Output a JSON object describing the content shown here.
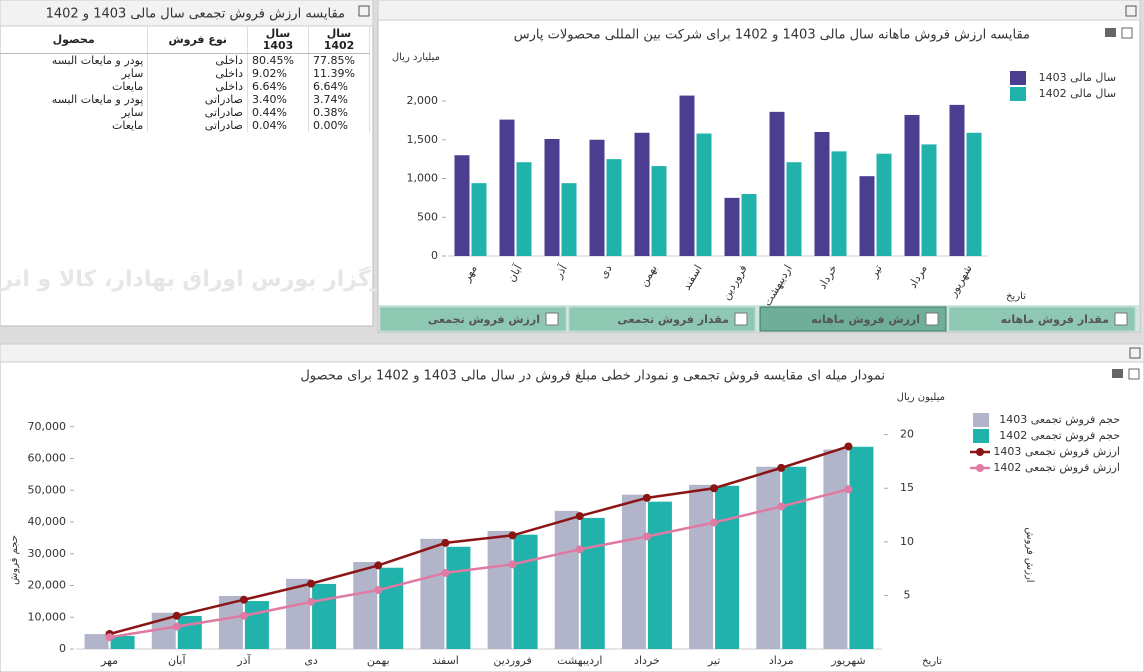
{
  "table": {
    "title": "مقایسه ارزش فروش تجمعی سال مالی 1403 و 1402",
    "columns": [
      "محصول",
      "نوع فروش",
      "سال 1403",
      "سال 1402"
    ],
    "rows": [
      [
        "پودر و مایعات البسه",
        "داخلی",
        "80.45%",
        "77.85%"
      ],
      [
        "سایر",
        "داخلی",
        "9.02%",
        "11.39%"
      ],
      [
        "مایعات",
        "داخلی",
        "6.64%",
        "6.64%"
      ],
      [
        "پودر و مایعات البسه",
        "صادراتی",
        "3.40%",
        "3.74%"
      ],
      [
        "سایر",
        "صادراتی",
        "0.44%",
        "0.38%"
      ],
      [
        "مایعات",
        "صادراتی",
        "0.04%",
        "0.00%"
      ]
    ]
  },
  "watermark": "کارگزار بورس اوراق بهادار، کالا و انرژی",
  "tabs": [
    "ارزش فروش تجمعی",
    "مقدار فروش تجمعی",
    "ارزش فروش ماهانه",
    "مقدار فروش ماهانه"
  ],
  "chart_data": [
    {
      "type": "bar",
      "title": "مقایسه ارزش فروش ماهانه سال مالی 1403 و 1402 برای شرکت بین المللی محصولات پارس",
      "y_label": "میلیارد ریال",
      "x_label": "تاریخ",
      "categories": [
        "مهر",
        "آبان",
        "آذر",
        "دی",
        "بهمن",
        "اسفند",
        "فروردین",
        "اردیبهشت",
        "خرداد",
        "تیر",
        "مرداد",
        "شهریور"
      ],
      "series": [
        {
          "name": "سال مالی 1403",
          "color": "#4b3d8f",
          "values": [
            1300,
            1760,
            1510,
            1500,
            1590,
            2070,
            750,
            1860,
            1600,
            1030,
            1820,
            1950
          ]
        },
        {
          "name": "سال مالی 1402",
          "color": "#21b3ab",
          "values": [
            940,
            1210,
            940,
            1250,
            1160,
            1580,
            800,
            1210,
            1350,
            1320,
            1440,
            1590
          ]
        }
      ],
      "ylim": [
        0,
        2400
      ],
      "yticks": [
        0,
        500,
        {
          "value": 1000,
          "label": "1,000"
        },
        {
          "value": 1500,
          "label": "1,500"
        },
        {
          "value": 2000,
          "label": "2,000"
        }
      ],
      "legend": "top-right"
    },
    {
      "type": "combo",
      "title": "نمودار میله ای مقایسه فروش تجمعی و نمودار خطی مبلغ فروش در سال مالی 1403 و 1402 برای محصول",
      "y_label": "حجم فروش",
      "y2_unit": "میلیون ریال",
      "y2_label": "ارزش فروش",
      "x_label": "تاریخ",
      "categories": [
        "مهر",
        "آبان",
        "آذر",
        "دی",
        "بهمن",
        "اسفند",
        "فروردین",
        "اردیبهشت",
        "خرداد",
        "تیر",
        "مرداد",
        "شهریور"
      ],
      "series": [
        {
          "name": "حجم فروش تجمعی 1403",
          "type": "bar",
          "color": "#b2b5c9",
          "values": [
            4700,
            11400,
            16700,
            22100,
            27400,
            34700,
            37200,
            43500,
            48600,
            51700,
            57400,
            62800
          ]
        },
        {
          "name": "حجم فروش تجمعی 1402",
          "type": "bar",
          "color": "#21b3ab",
          "values": [
            4100,
            10400,
            15100,
            20500,
            25600,
            32200,
            36000,
            41300,
            46400,
            51400,
            57400,
            63700
          ]
        },
        {
          "name": "ارزش فروش تجمعی 1403",
          "type": "line",
          "axis": "y2",
          "color": "#8b1414",
          "values": [
            1.4,
            3.1,
            4.6,
            6.1,
            7.8,
            9.9,
            10.6,
            12.4,
            14.1,
            15.0,
            16.9,
            18.9
          ]
        },
        {
          "name": "ارزش فروش تجمعی 1402",
          "type": "line",
          "axis": "y2",
          "color": "#e07aa3",
          "values": [
            1.1,
            2.1,
            3.1,
            4.4,
            5.5,
            7.1,
            7.9,
            9.3,
            10.5,
            11.8,
            13.3,
            14.9
          ]
        }
      ],
      "ylim": [
        0,
        80000
      ],
      "yticks": [
        0,
        {
          "value": 10000,
          "label": "10,000"
        },
        {
          "value": 20000,
          "label": "20,000"
        },
        {
          "value": 30000,
          "label": "30,000"
        },
        {
          "value": 40000,
          "label": "40,000"
        },
        {
          "value": 50000,
          "label": "50,000"
        },
        {
          "value": 60000,
          "label": "60,000"
        },
        {
          "value": 70000,
          "label": "70,000"
        }
      ],
      "y2lim": [
        0,
        23.7
      ],
      "y2ticks": [
        5,
        10,
        15,
        20
      ],
      "legend": "top-right"
    }
  ]
}
